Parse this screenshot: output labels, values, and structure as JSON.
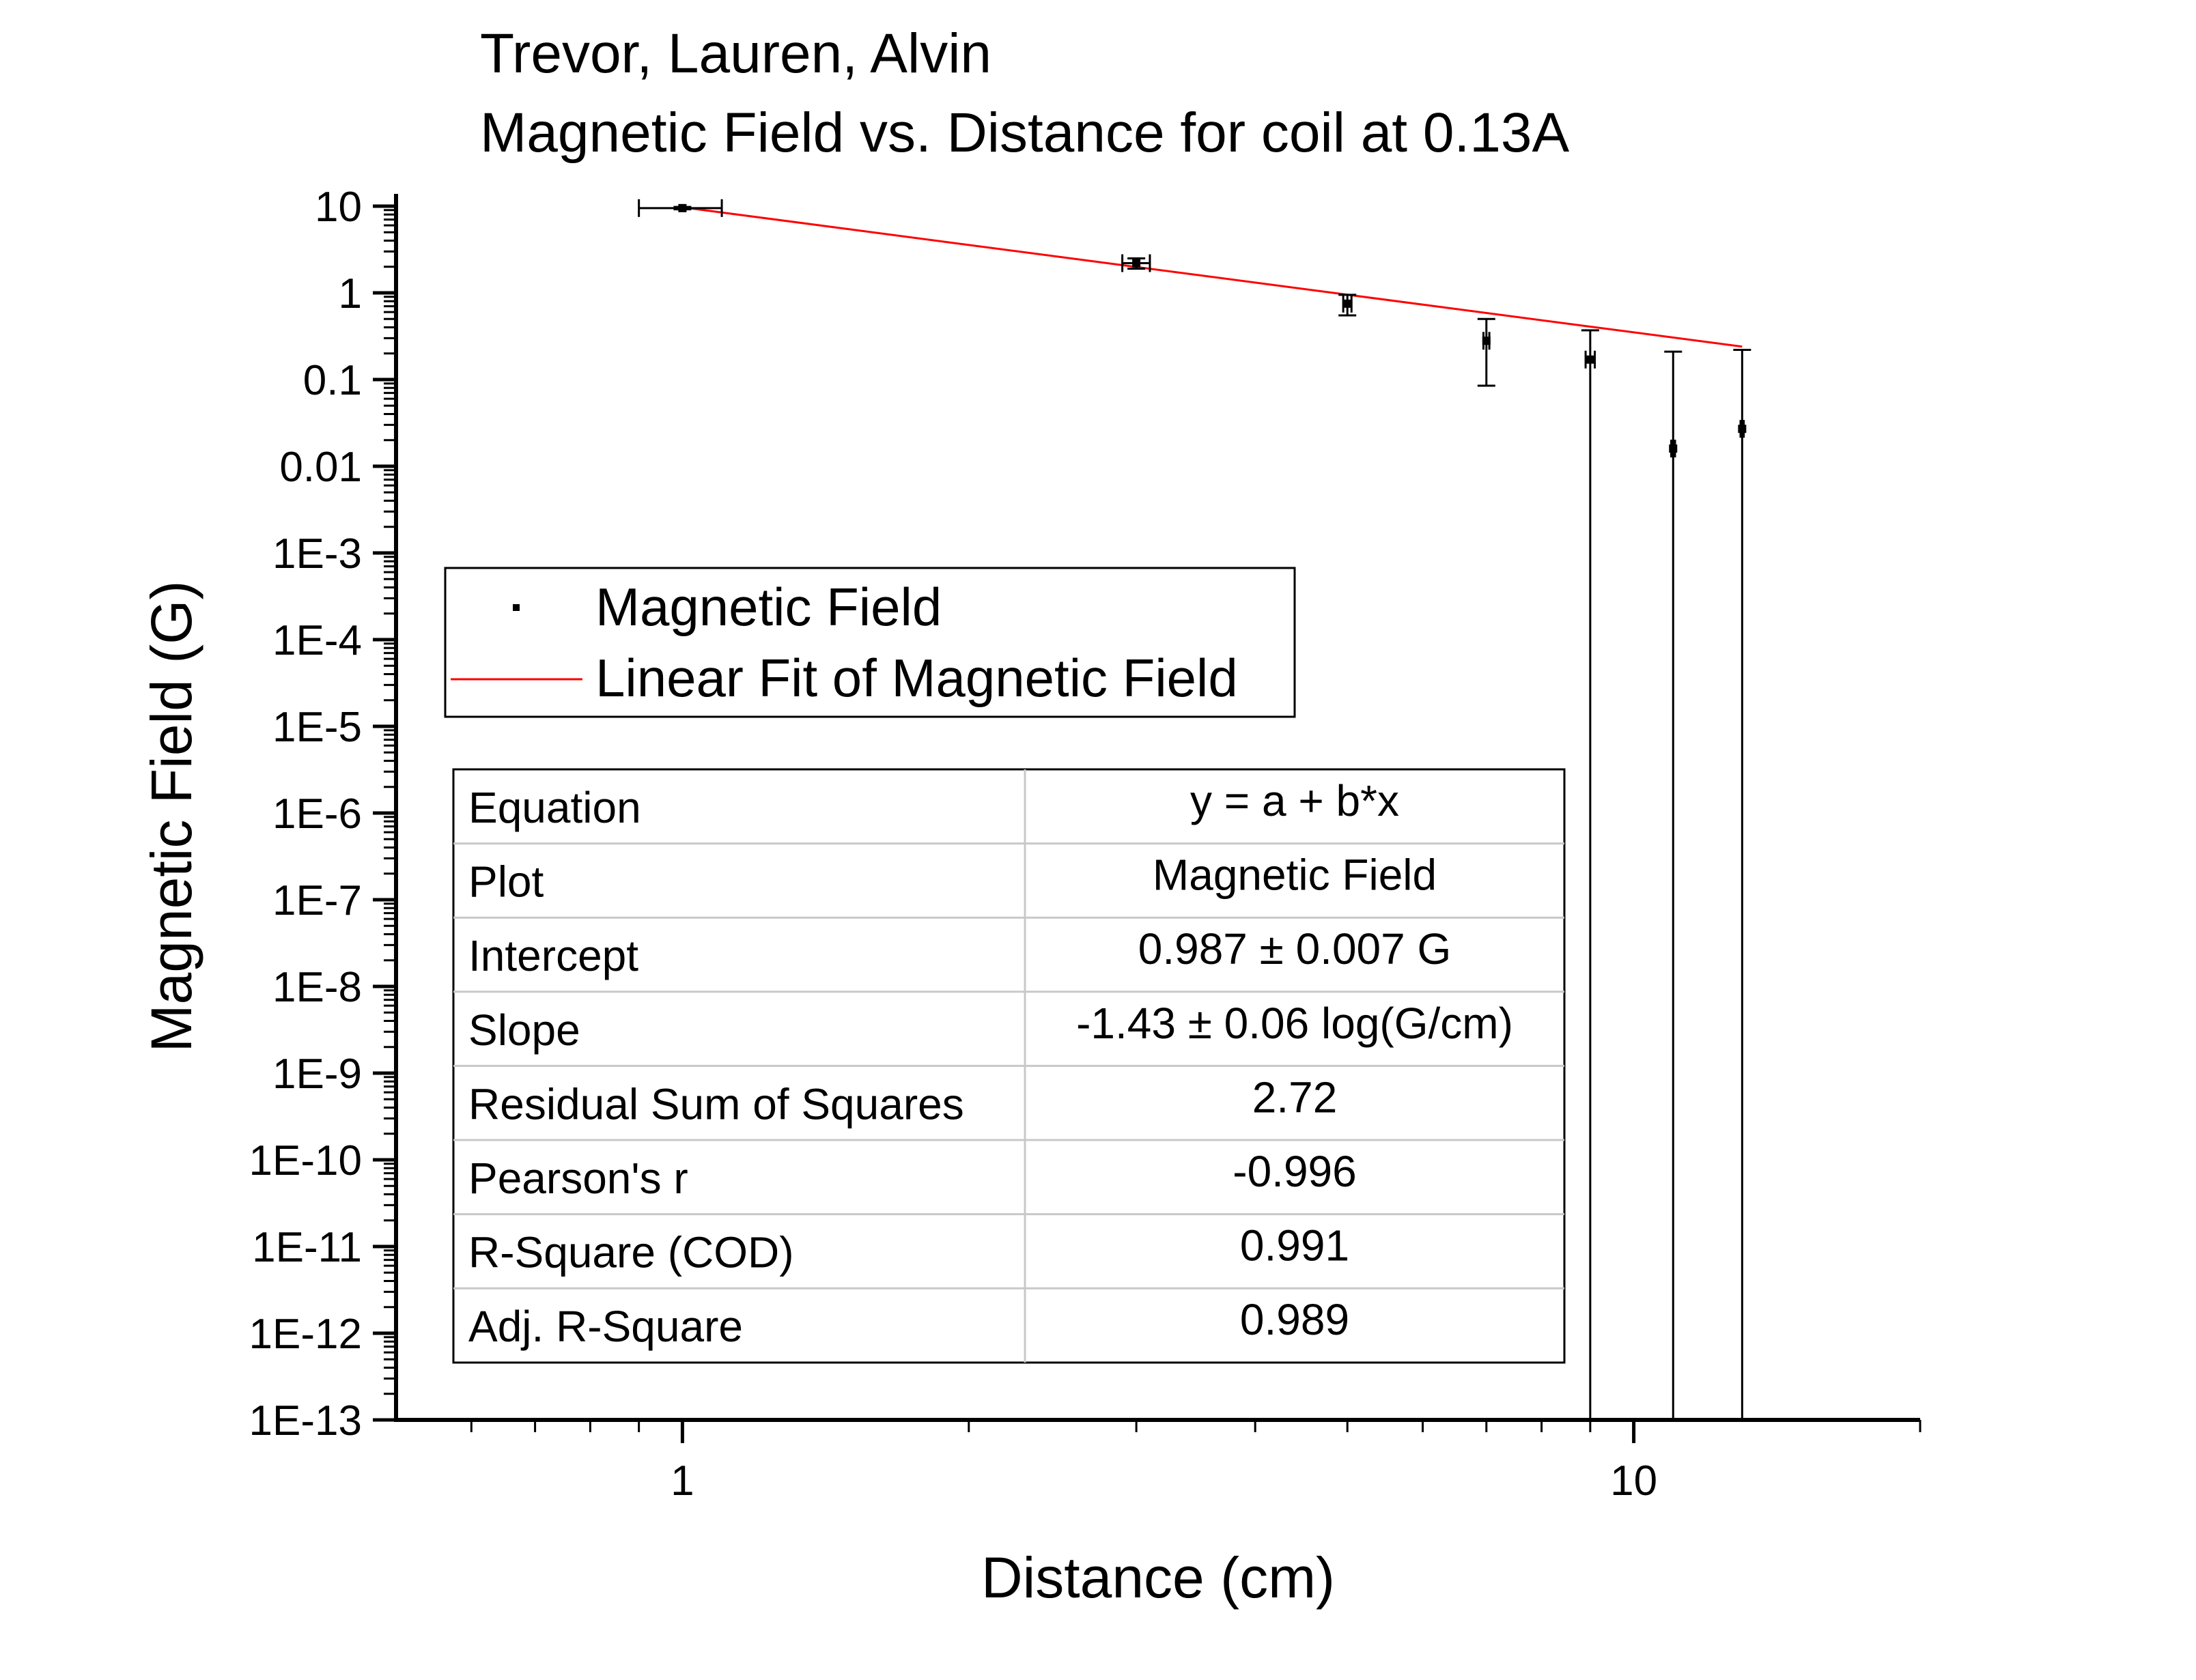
{
  "title": {
    "line1": "Trevor, Lauren, Alvin",
    "line2": "Magnetic Field vs. Distance for coil at 0.13A"
  },
  "legend": {
    "items": [
      {
        "label": "Magnetic Field",
        "marker": "square-point",
        "color": "#000000"
      },
      {
        "label": "Linear Fit of Magnetic Field",
        "marker": "line",
        "color": "#ff0000"
      }
    ]
  },
  "fit_table": {
    "rows": [
      {
        "name": "Equation",
        "value": "y = a + b*x"
      },
      {
        "name": "Plot",
        "value": "Magnetic Field"
      },
      {
        "name": "Intercept",
        "value": "0.987 ± 0.007 G"
      },
      {
        "name": "Slope",
        "value": "-1.43 ± 0.06 log(G/cm)"
      },
      {
        "name": "Residual Sum of Squares",
        "value": "2.72"
      },
      {
        "name": "Pearson's r",
        "value": "-0.996"
      },
      {
        "name": "R-Square (COD)",
        "value": "0.991"
      },
      {
        "name": "Adj. R-Square",
        "value": "0.989"
      }
    ]
  },
  "chart_data": {
    "type": "scatter",
    "xlabel": "Distance (cm)",
    "ylabel": "Magnetic Field (G)",
    "x_scale": "log",
    "y_scale": "log",
    "xlim": [
      0.5,
      20
    ],
    "ylim": [
      1e-13,
      10
    ],
    "x_ticks": [
      {
        "value": 1,
        "label": "1"
      },
      {
        "value": 10,
        "label": "10"
      }
    ],
    "y_ticks": [
      {
        "value": 10,
        "label": "10"
      },
      {
        "value": 1,
        "label": "1"
      },
      {
        "value": 0.1,
        "label": "0.1"
      },
      {
        "value": 0.01,
        "label": "0.01"
      },
      {
        "value": 0.001,
        "label": "1E-3"
      },
      {
        "value": 0.0001,
        "label": "1E-4"
      },
      {
        "value": 1e-05,
        "label": "1E-5"
      },
      {
        "value": 1e-06,
        "label": "1E-6"
      },
      {
        "value": 1e-07,
        "label": "1E-7"
      },
      {
        "value": 1e-08,
        "label": "1E-8"
      },
      {
        "value": 1e-09,
        "label": "1E-9"
      },
      {
        "value": 1e-10,
        "label": "1E-10"
      },
      {
        "value": 1e-11,
        "label": "1E-11"
      },
      {
        "value": 1e-12,
        "label": "1E-12"
      },
      {
        "value": 1e-13,
        "label": "1E-13"
      }
    ],
    "grid": false,
    "legend_position": "left-middle",
    "series": [
      {
        "name": "Magnetic Field",
        "kind": "points",
        "color": "#000000",
        "points": [
          {
            "x": 1.0,
            "y": 9.5,
            "x_err": [
              0.9,
              1.1
            ],
            "y_err": [
              9.2,
              9.8
            ]
          },
          {
            "x": 3.0,
            "y": 2.2,
            "x_err": [
              2.9,
              3.1
            ],
            "y_err": [
              1.9,
              2.5
            ]
          },
          {
            "x": 5.0,
            "y": 0.75,
            "x_err": [
              4.95,
              5.05
            ],
            "y_err": [
              0.55,
              0.95
            ]
          },
          {
            "x": 7.0,
            "y": 0.28,
            "x_err": [
              6.95,
              7.05
            ],
            "y_err": [
              0.085,
              0.5
            ]
          },
          {
            "x": 9.0,
            "y": 0.17,
            "x_err": [
              8.9,
              9.1
            ],
            "y_err": [
              1e-13,
              0.37
            ]
          },
          {
            "x": 11.0,
            "y": 0.016,
            "x_err": [
              10.95,
              11.05
            ],
            "y_err": [
              1e-13,
              0.21
            ]
          },
          {
            "x": 13.0,
            "y": 0.027,
            "x_err": [
              12.95,
              13.05
            ],
            "y_err": [
              1e-13,
              0.22
            ]
          }
        ]
      },
      {
        "name": "Linear Fit of Magnetic Field",
        "kind": "fit-line",
        "color": "#ff0000",
        "x": [
          1.0,
          13.0
        ],
        "y": [
          9.7,
          0.24
        ]
      }
    ]
  }
}
